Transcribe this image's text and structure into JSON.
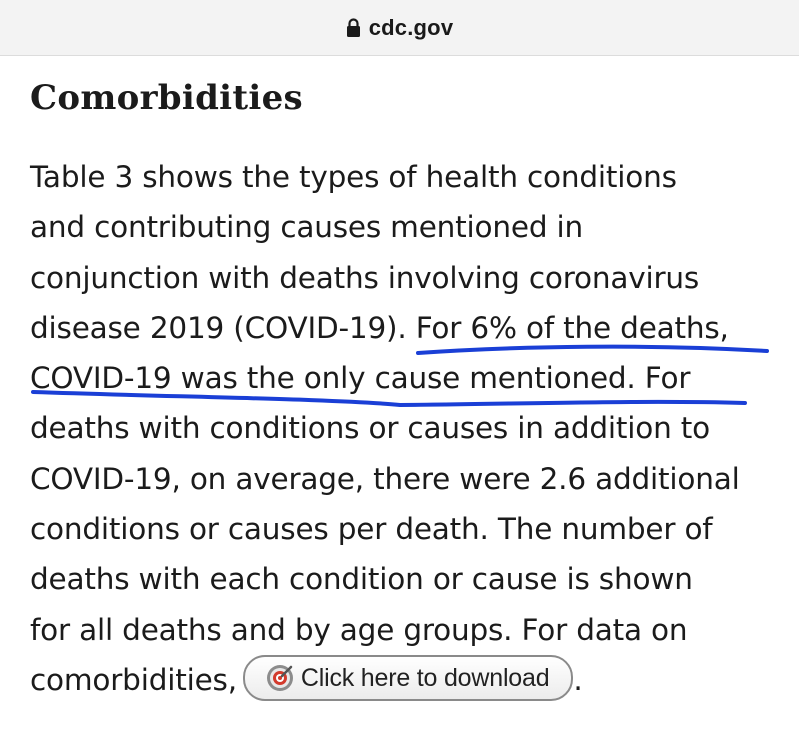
{
  "browser": {
    "url": "cdc.gov",
    "lock_icon": "lock-icon"
  },
  "article": {
    "title": "Comorbidities",
    "lines": [
      "Table 3 shows the types of health conditions",
      "and contributing causes mentioned in",
      "conjunction with deaths involving coronavirus",
      "disease 2019 (COVID-19). For 6% of the deaths,",
      "COVID-19 was the only cause mentioned. For",
      "deaths with conditions or causes in addition to",
      "COVID-19, on average, there were 2.6 additional",
      "conditions or causes per death. The number of",
      "deaths with each condition or cause is shown",
      "for all deaths and by age groups. For data on"
    ],
    "last_line_prefix": "comorbidities,",
    "download_button_label": "Click here to download",
    "download_icon": "download-target-icon",
    "last_line_suffix": "."
  },
  "annotation": {
    "highlighted_text": "For 6% of the deaths, COVID-19 was the only cause mentioned.",
    "color": "#1a3fd6",
    "style": "hand-drawn underline"
  },
  "colors": {
    "text": "#1b1b1b",
    "topbar_background": "#f3f3f3",
    "page_background": "#ffffff"
  }
}
